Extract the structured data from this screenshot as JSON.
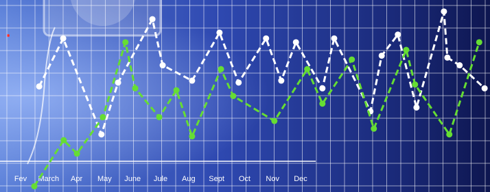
{
  "chart_data": {
    "type": "line",
    "categories": [
      "Fev",
      "March",
      "Apr",
      "May",
      "June",
      "Jule",
      "Aug",
      "Sept",
      "Oct",
      "Nov",
      "Dec"
    ],
    "xlim": [
      0,
      100
    ],
    "ylim": [
      0,
      100
    ],
    "grid": true,
    "series": [
      {
        "color": "#ffffff",
        "x": [
          8.0,
          12.9,
          20.7,
          24.1,
          31.1,
          33.2,
          39.2,
          44.8,
          48.7,
          54.3,
          57.4,
          60.4,
          65.8,
          68.2,
          75.6,
          77.9,
          81.2,
          85.0,
          90.6,
          91.3,
          93.8,
          98.9
        ],
        "values": [
          55,
          80,
          30,
          57,
          90,
          66,
          58,
          83,
          57,
          80,
          58,
          78,
          54,
          80,
          42,
          71,
          82,
          44,
          94,
          70,
          66,
          54
        ]
      },
      {
        "color": "#66dd33",
        "x": [
          7.0,
          13.0,
          15.7,
          21.0,
          25.6,
          27.6,
          32.5,
          36.0,
          39.2,
          45.1,
          47.6,
          56.0,
          62.7,
          65.8,
          71.8,
          76.3,
          82.9,
          84.7,
          91.7,
          97.8
        ],
        "values": [
          3,
          27,
          20,
          39,
          78,
          54,
          39,
          53,
          29,
          64,
          50,
          37,
          64,
          46,
          69,
          33,
          74,
          56,
          30,
          78
        ]
      }
    ]
  }
}
